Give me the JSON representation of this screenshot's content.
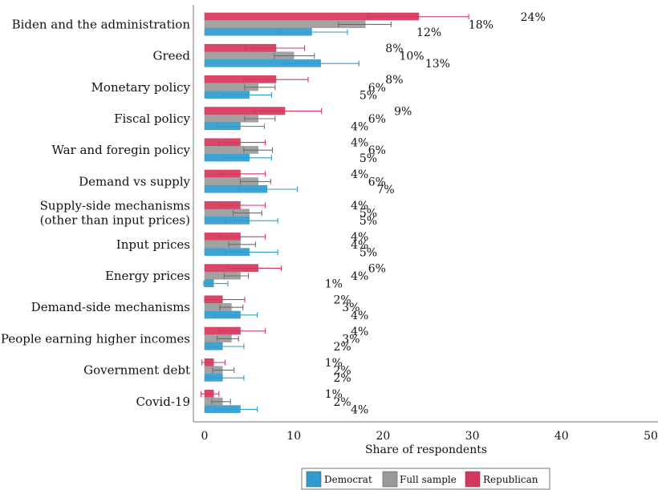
{
  "chart_data": {
    "type": "bar",
    "orientation": "horizontal",
    "xlabel": "Share of respondents",
    "xlim": [
      0,
      50
    ],
    "xticks": [
      "0",
      "10",
      "20",
      "30",
      "40",
      "50"
    ],
    "grid": false,
    "legend_position": "bottom",
    "categories": [
      [
        "Biden and the administration"
      ],
      [
        "Greed"
      ],
      [
        "Monetary policy"
      ],
      [
        "Fiscal policy"
      ],
      [
        "War and foregin policy"
      ],
      [
        "Demand vs supply"
      ],
      [
        "Supply-side mechanisms",
        "(other than input prices)"
      ],
      [
        "Input prices"
      ],
      [
        "Energy prices"
      ],
      [
        "Demand-side mechanisms"
      ],
      [
        "People earning higher incomes"
      ],
      [
        "Government debt"
      ],
      [
        "Covid-19"
      ]
    ],
    "series": [
      {
        "name": "Republican",
        "color": "#d6365b",
        "values": [
          24,
          8,
          8,
          9,
          4,
          4,
          4,
          4,
          6,
          2,
          4,
          1,
          1
        ],
        "labels": [
          "24%",
          "8%",
          "8%",
          "9%",
          "4%",
          "4%",
          "4%",
          "4%",
          "6%",
          "2%",
          "4%",
          "1%",
          "1%"
        ],
        "ci": [
          [
            18.3,
            29.6
          ],
          [
            4.6,
            11.2
          ],
          [
            4.4,
            11.6
          ],
          [
            5.5,
            13.1
          ],
          [
            1.6,
            6.8
          ],
          [
            1.6,
            6.8
          ],
          [
            1.6,
            6.8
          ],
          [
            1.6,
            6.8
          ],
          [
            2.6,
            8.6
          ],
          [
            0.0,
            4.5
          ],
          [
            1.6,
            6.8
          ],
          [
            -0.3,
            2.3
          ],
          [
            -0.4,
            1.6
          ]
        ]
      },
      {
        "name": "Full sample",
        "color": "#9a9a9a",
        "values": [
          18,
          10,
          6,
          6,
          6,
          6,
          5,
          4,
          4,
          3,
          3,
          2,
          2
        ],
        "labels": [
          "18%",
          "10%",
          "6%",
          "6%",
          "6%",
          "6%",
          "5%",
          "4%",
          "4%",
          "3%",
          "3%",
          "2%",
          "2%"
        ],
        "ci": [
          [
            15.0,
            20.9
          ],
          [
            7.8,
            12.3
          ],
          [
            4.5,
            7.9
          ],
          [
            4.5,
            7.9
          ],
          [
            4.4,
            7.6
          ],
          [
            4.0,
            7.4
          ],
          [
            3.2,
            6.4
          ],
          [
            2.7,
            5.7
          ],
          [
            2.2,
            4.9
          ],
          [
            1.7,
            4.3
          ],
          [
            1.4,
            3.8
          ],
          [
            0.9,
            3.3
          ],
          [
            0.8,
            2.9
          ]
        ]
      },
      {
        "name": "Democrat",
        "color": "#2f9ccd",
        "values": [
          12,
          13,
          5,
          4,
          5,
          7,
          5,
          5,
          1,
          4,
          2,
          2,
          4
        ],
        "labels": [
          "12%",
          "13%",
          "5%",
          "4%",
          "5%",
          "7%",
          "5%",
          "5%",
          "1%",
          "4%",
          "2%",
          "2%",
          "4%"
        ],
        "ci": [
          [
            8.2,
            16.0
          ],
          [
            8.8,
            17.3
          ],
          [
            2.1,
            7.5
          ],
          [
            1.5,
            6.7
          ],
          [
            2.1,
            7.5
          ],
          [
            3.8,
            10.4
          ],
          [
            2.3,
            8.2
          ],
          [
            2.3,
            8.2
          ],
          [
            -0.1,
            2.6
          ],
          [
            1.1,
            5.9
          ],
          [
            0.4,
            4.4
          ],
          [
            0.3,
            4.4
          ],
          [
            1.2,
            5.9
          ]
        ]
      }
    ],
    "legend": [
      {
        "name": "Democrat",
        "color": "#2f9ccd"
      },
      {
        "name": "Full sample",
        "color": "#9a9a9a"
      },
      {
        "name": "Republican",
        "color": "#d6365b"
      }
    ]
  }
}
